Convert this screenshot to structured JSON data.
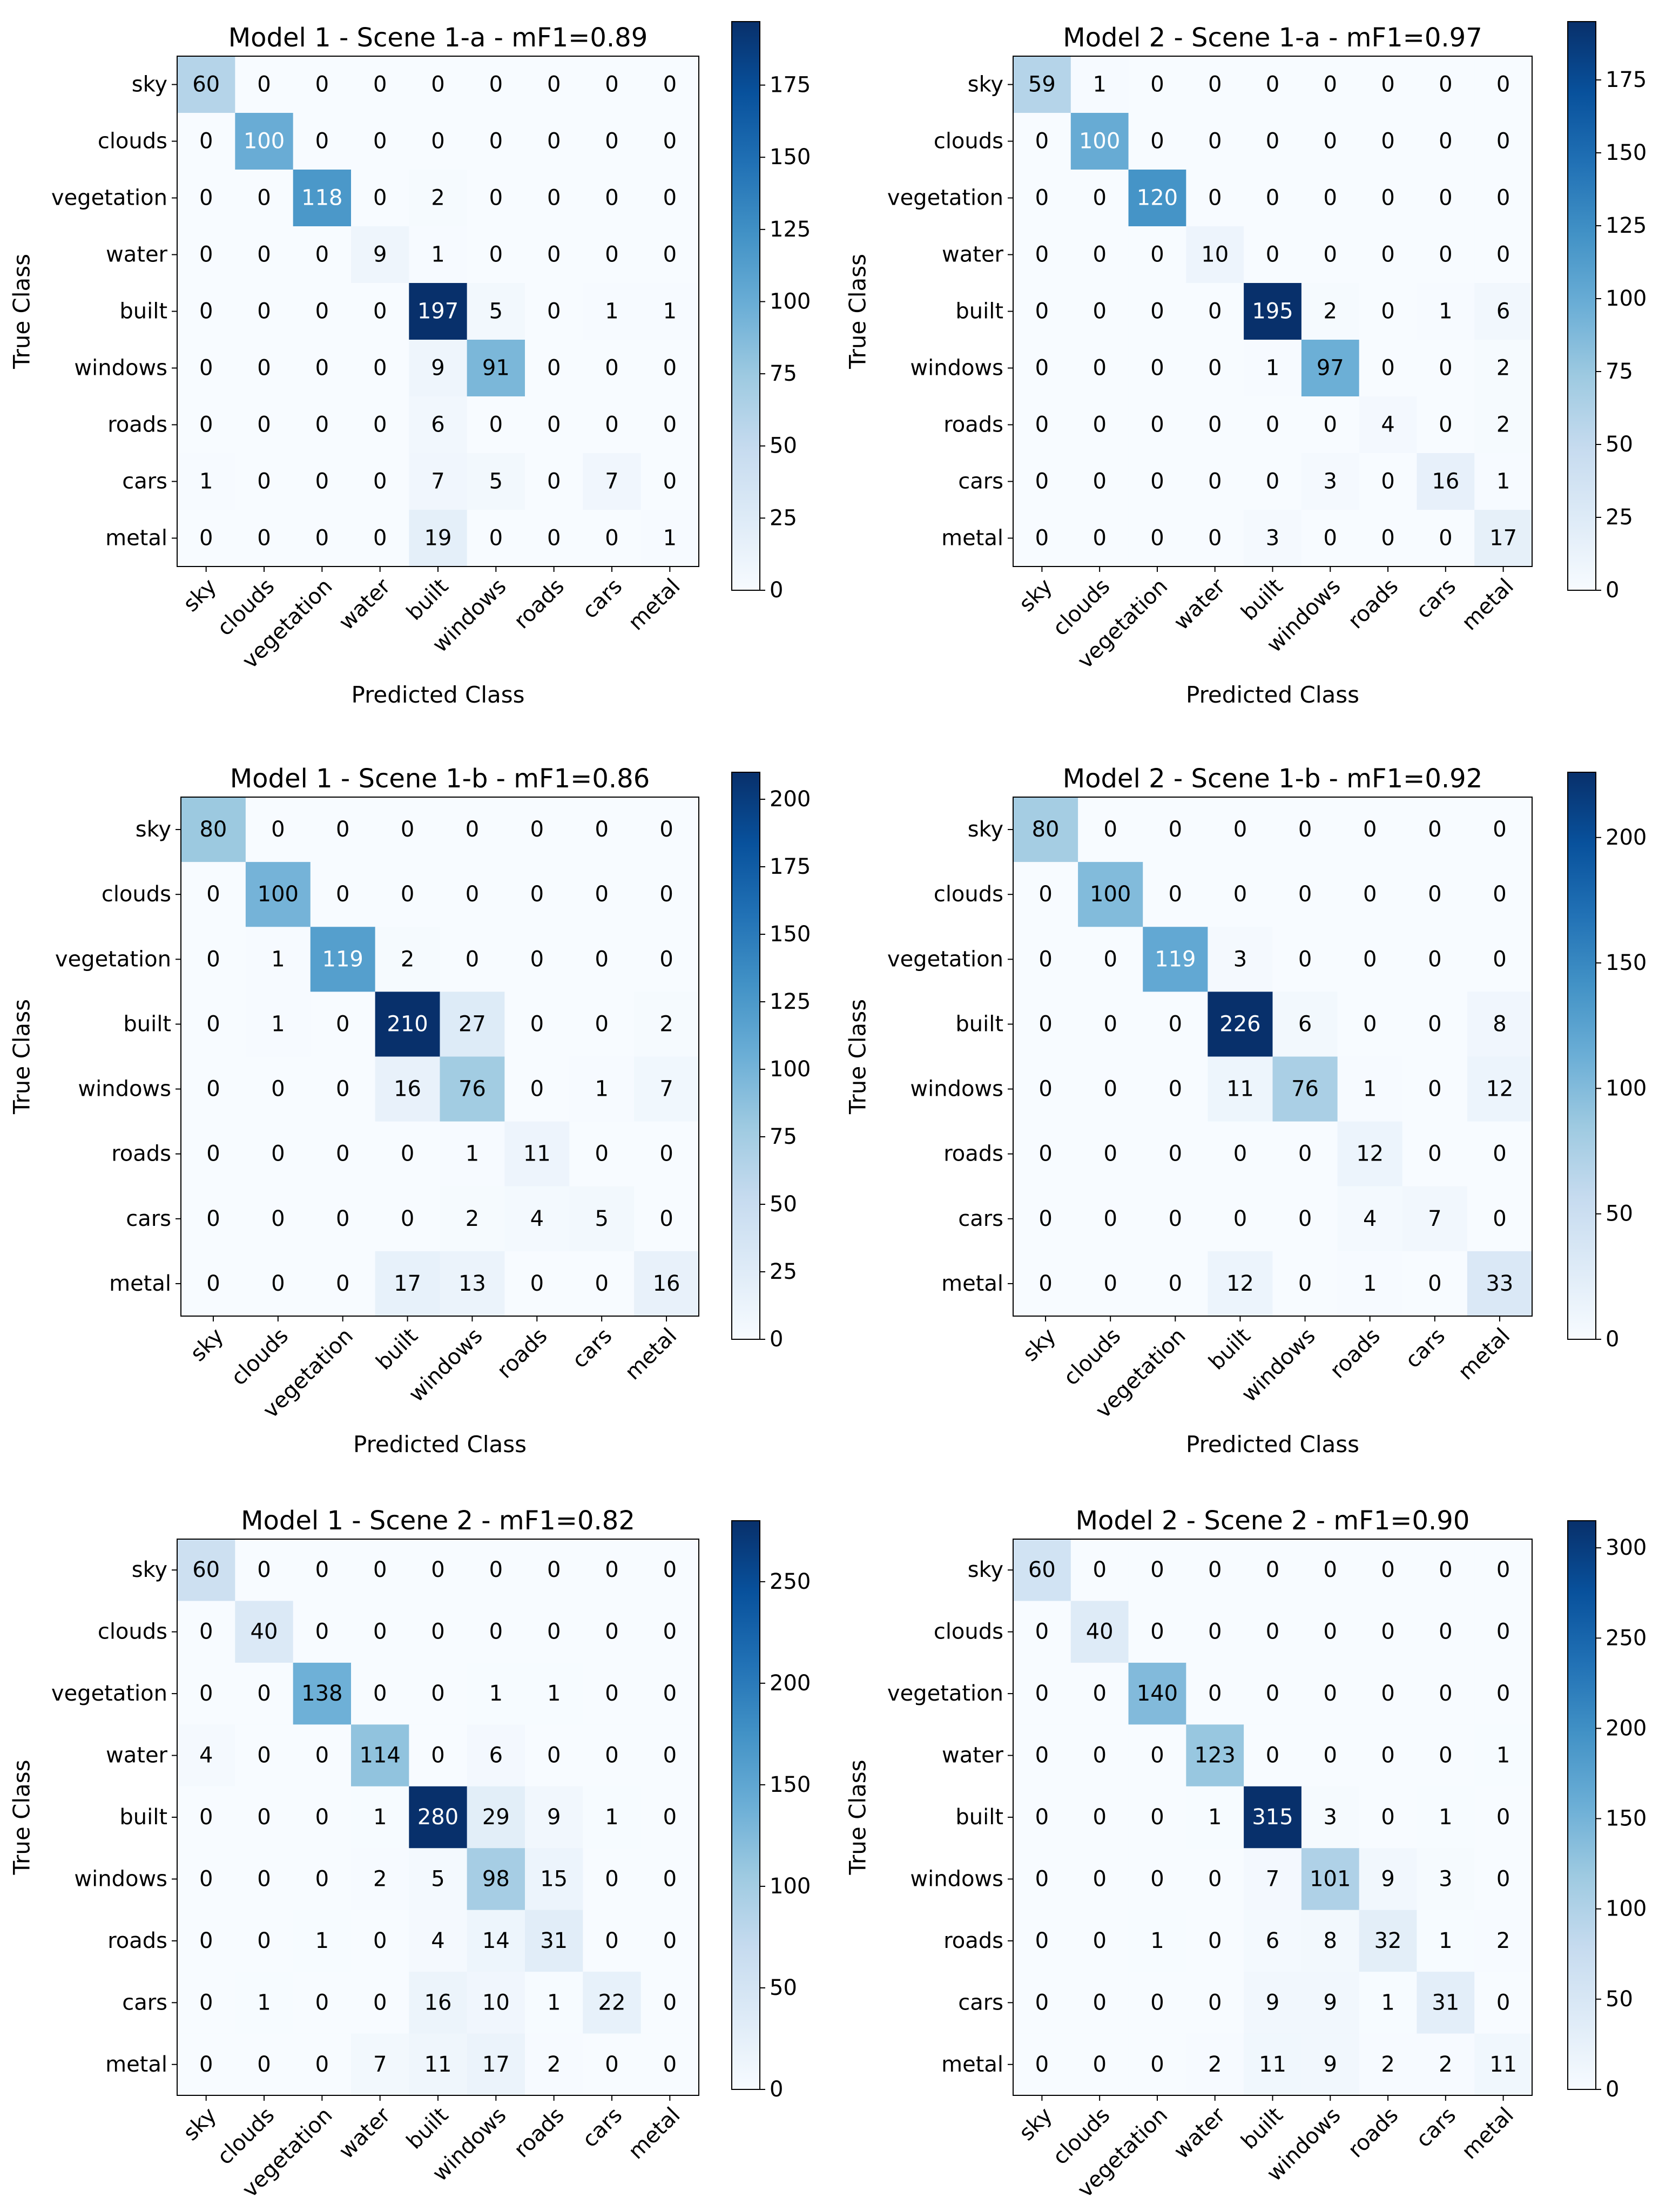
{
  "common": {
    "xlabel": "Predicted Class",
    "ylabel": "True Class"
  },
  "chart_data": [
    {
      "type": "heatmap",
      "title": "Model 1 - Scene 1-a - mF1=0.89",
      "xlabel": "Predicted Class",
      "ylabel": "True Class",
      "labels": [
        "sky",
        "clouds",
        "vegetation",
        "water",
        "built",
        "windows",
        "roads",
        "cars",
        "metal"
      ],
      "matrix": [
        [
          60,
          0,
          0,
          0,
          0,
          0,
          0,
          0,
          0
        ],
        [
          0,
          100,
          0,
          0,
          0,
          0,
          0,
          0,
          0
        ],
        [
          0,
          0,
          118,
          0,
          2,
          0,
          0,
          0,
          0
        ],
        [
          0,
          0,
          0,
          9,
          1,
          0,
          0,
          0,
          0
        ],
        [
          0,
          0,
          0,
          0,
          197,
          5,
          0,
          1,
          1
        ],
        [
          0,
          0,
          0,
          0,
          9,
          91,
          0,
          0,
          0
        ],
        [
          0,
          0,
          0,
          0,
          6,
          0,
          0,
          0,
          0
        ],
        [
          1,
          0,
          0,
          0,
          7,
          5,
          0,
          7,
          0
        ],
        [
          0,
          0,
          0,
          0,
          19,
          0,
          0,
          0,
          1
        ]
      ],
      "colorbar_range": [
        0,
        197
      ],
      "colorbar_ticks": [
        0,
        25,
        50,
        75,
        100,
        125,
        150,
        175
      ]
    },
    {
      "type": "heatmap",
      "title": "Model 2 - Scene 1-a - mF1=0.97",
      "xlabel": "Predicted Class",
      "ylabel": "True Class",
      "labels": [
        "sky",
        "clouds",
        "vegetation",
        "water",
        "built",
        "windows",
        "roads",
        "cars",
        "metal"
      ],
      "matrix": [
        [
          59,
          1,
          0,
          0,
          0,
          0,
          0,
          0,
          0
        ],
        [
          0,
          100,
          0,
          0,
          0,
          0,
          0,
          0,
          0
        ],
        [
          0,
          0,
          120,
          0,
          0,
          0,
          0,
          0,
          0
        ],
        [
          0,
          0,
          0,
          10,
          0,
          0,
          0,
          0,
          0
        ],
        [
          0,
          0,
          0,
          0,
          195,
          2,
          0,
          1,
          6
        ],
        [
          0,
          0,
          0,
          0,
          1,
          97,
          0,
          0,
          2
        ],
        [
          0,
          0,
          0,
          0,
          0,
          0,
          4,
          0,
          2
        ],
        [
          0,
          0,
          0,
          0,
          0,
          3,
          0,
          16,
          1
        ],
        [
          0,
          0,
          0,
          0,
          3,
          0,
          0,
          0,
          17
        ]
      ],
      "colorbar_range": [
        0,
        195
      ],
      "colorbar_ticks": [
        0,
        25,
        50,
        75,
        100,
        125,
        150,
        175
      ]
    },
    {
      "type": "heatmap",
      "title": "Model 1 - Scene 1-b - mF1=0.86",
      "xlabel": "Predicted Class",
      "ylabel": "True Class",
      "labels": [
        "sky",
        "clouds",
        "vegetation",
        "built",
        "windows",
        "roads",
        "cars",
        "metal"
      ],
      "matrix": [
        [
          80,
          0,
          0,
          0,
          0,
          0,
          0,
          0
        ],
        [
          0,
          100,
          0,
          0,
          0,
          0,
          0,
          0
        ],
        [
          0,
          1,
          119,
          2,
          0,
          0,
          0,
          0
        ],
        [
          0,
          1,
          0,
          210,
          27,
          0,
          0,
          2
        ],
        [
          0,
          0,
          0,
          16,
          76,
          0,
          1,
          7
        ],
        [
          0,
          0,
          0,
          0,
          1,
          11,
          0,
          0
        ],
        [
          0,
          0,
          0,
          0,
          2,
          4,
          5,
          0
        ],
        [
          0,
          0,
          0,
          17,
          13,
          0,
          0,
          16
        ]
      ],
      "colorbar_range": [
        0,
        210
      ],
      "colorbar_ticks": [
        0,
        25,
        50,
        75,
        100,
        125,
        150,
        175,
        200
      ]
    },
    {
      "type": "heatmap",
      "title": "Model 2 - Scene 1-b - mF1=0.92",
      "xlabel": "Predicted Class",
      "ylabel": "True Class",
      "labels": [
        "sky",
        "clouds",
        "vegetation",
        "built",
        "windows",
        "roads",
        "cars",
        "metal"
      ],
      "matrix": [
        [
          80,
          0,
          0,
          0,
          0,
          0,
          0,
          0
        ],
        [
          0,
          100,
          0,
          0,
          0,
          0,
          0,
          0
        ],
        [
          0,
          0,
          119,
          3,
          0,
          0,
          0,
          0
        ],
        [
          0,
          0,
          0,
          226,
          6,
          0,
          0,
          8
        ],
        [
          0,
          0,
          0,
          11,
          76,
          1,
          0,
          12
        ],
        [
          0,
          0,
          0,
          0,
          0,
          12,
          0,
          0
        ],
        [
          0,
          0,
          0,
          0,
          0,
          4,
          7,
          0
        ],
        [
          0,
          0,
          0,
          12,
          0,
          1,
          0,
          33
        ]
      ],
      "colorbar_range": [
        0,
        226
      ],
      "colorbar_ticks": [
        0,
        50,
        100,
        150,
        200
      ]
    },
    {
      "type": "heatmap",
      "title": "Model 1 - Scene 2 - mF1=0.82",
      "xlabel": "Predicted Class",
      "ylabel": "True Class",
      "labels": [
        "sky",
        "clouds",
        "vegetation",
        "water",
        "built",
        "windows",
        "roads",
        "cars",
        "metal"
      ],
      "matrix": [
        [
          60,
          0,
          0,
          0,
          0,
          0,
          0,
          0,
          0
        ],
        [
          0,
          40,
          0,
          0,
          0,
          0,
          0,
          0,
          0
        ],
        [
          0,
          0,
          138,
          0,
          0,
          1,
          1,
          0,
          0
        ],
        [
          4,
          0,
          0,
          114,
          0,
          6,
          0,
          0,
          0
        ],
        [
          0,
          0,
          0,
          1,
          280,
          29,
          9,
          1,
          0
        ],
        [
          0,
          0,
          0,
          2,
          5,
          98,
          15,
          0,
          0
        ],
        [
          0,
          0,
          1,
          0,
          4,
          14,
          31,
          0,
          0
        ],
        [
          0,
          1,
          0,
          0,
          16,
          10,
          1,
          22,
          0
        ],
        [
          0,
          0,
          0,
          7,
          11,
          17,
          2,
          0,
          0
        ]
      ],
      "colorbar_range": [
        0,
        280
      ],
      "colorbar_ticks": [
        0,
        50,
        100,
        150,
        200,
        250
      ]
    },
    {
      "type": "heatmap",
      "title": "Model 2 - Scene 2 - mF1=0.90",
      "xlabel": "Predicted Class",
      "ylabel": "True Class",
      "labels": [
        "sky",
        "clouds",
        "vegetation",
        "water",
        "built",
        "windows",
        "roads",
        "cars",
        "metal"
      ],
      "matrix": [
        [
          60,
          0,
          0,
          0,
          0,
          0,
          0,
          0,
          0
        ],
        [
          0,
          40,
          0,
          0,
          0,
          0,
          0,
          0,
          0
        ],
        [
          0,
          0,
          140,
          0,
          0,
          0,
          0,
          0,
          0
        ],
        [
          0,
          0,
          0,
          123,
          0,
          0,
          0,
          0,
          1
        ],
        [
          0,
          0,
          0,
          1,
          315,
          3,
          0,
          1,
          0
        ],
        [
          0,
          0,
          0,
          0,
          7,
          101,
          9,
          3,
          0
        ],
        [
          0,
          0,
          1,
          0,
          6,
          8,
          32,
          1,
          2
        ],
        [
          0,
          0,
          0,
          0,
          9,
          9,
          1,
          31,
          0
        ],
        [
          0,
          0,
          0,
          2,
          11,
          9,
          2,
          2,
          11
        ]
      ],
      "colorbar_range": [
        0,
        315
      ],
      "colorbar_ticks": [
        0,
        50,
        100,
        150,
        200,
        250,
        300
      ]
    }
  ]
}
